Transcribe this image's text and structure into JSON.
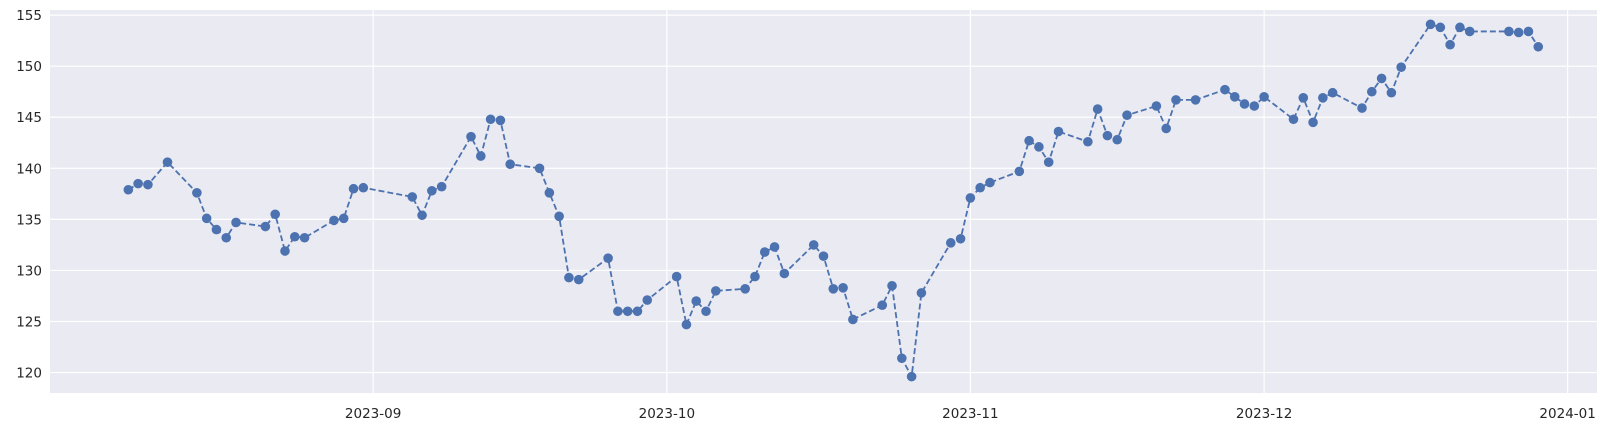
{
  "chart_data": {
    "type": "line",
    "title": "",
    "xlabel": "",
    "ylabel": "",
    "x_is_date": true,
    "xlim": [
      "2023-07-30",
      "2024-01-04"
    ],
    "ylim": [
      118,
      155.5
    ],
    "grid": true,
    "legend": "none",
    "line_style": "dashed",
    "marker": "circle",
    "color": "#4c72b0",
    "background": "#eaeaf2",
    "x_ticks": [
      {
        "date": "2023-09-01",
        "label": "2023-09"
      },
      {
        "date": "2023-10-01",
        "label": "2023-10"
      },
      {
        "date": "2023-11-01",
        "label": "2023-11"
      },
      {
        "date": "2023-12-01",
        "label": "2023-12"
      },
      {
        "date": "2024-01-01",
        "label": "2024-01"
      }
    ],
    "y_ticks": [
      120,
      125,
      130,
      135,
      140,
      145,
      150,
      155
    ],
    "series": [
      {
        "points": [
          [
            "2023-08-07",
            137.9
          ],
          [
            "2023-08-08",
            138.5
          ],
          [
            "2023-08-09",
            138.4
          ],
          [
            "2023-08-11",
            140.6
          ],
          [
            "2023-08-14",
            137.6
          ],
          [
            "2023-08-15",
            135.1
          ],
          [
            "2023-08-16",
            134.0
          ],
          [
            "2023-08-17",
            133.2
          ],
          [
            "2023-08-18",
            134.7
          ],
          [
            "2023-08-21",
            134.3
          ],
          [
            "2023-08-22",
            135.5
          ],
          [
            "2023-08-23",
            131.9
          ],
          [
            "2023-08-24",
            133.3
          ],
          [
            "2023-08-25",
            133.2
          ],
          [
            "2023-08-28",
            134.9
          ],
          [
            "2023-08-29",
            135.1
          ],
          [
            "2023-08-30",
            138.0
          ],
          [
            "2023-08-31",
            138.1
          ],
          [
            "2023-09-05",
            137.2
          ],
          [
            "2023-09-06",
            135.4
          ],
          [
            "2023-09-07",
            137.8
          ],
          [
            "2023-09-08",
            138.2
          ],
          [
            "2023-09-11",
            143.1
          ],
          [
            "2023-09-12",
            141.2
          ],
          [
            "2023-09-13",
            144.8
          ],
          [
            "2023-09-14",
            144.7
          ],
          [
            "2023-09-15",
            140.4
          ],
          [
            "2023-09-18",
            140.0
          ],
          [
            "2023-09-19",
            137.6
          ],
          [
            "2023-09-20",
            135.3
          ],
          [
            "2023-09-21",
            129.3
          ],
          [
            "2023-09-22",
            129.1
          ],
          [
            "2023-09-25",
            131.2
          ],
          [
            "2023-09-26",
            126.0
          ],
          [
            "2023-09-27",
            126.0
          ],
          [
            "2023-09-28",
            126.0
          ],
          [
            "2023-09-29",
            127.1
          ],
          [
            "2023-10-02",
            129.4
          ],
          [
            "2023-10-03",
            124.7
          ],
          [
            "2023-10-04",
            127.0
          ],
          [
            "2023-10-05",
            126.0
          ],
          [
            "2023-10-06",
            128.0
          ],
          [
            "2023-10-09",
            128.2
          ],
          [
            "2023-10-10",
            129.4
          ],
          [
            "2023-10-11",
            131.8
          ],
          [
            "2023-10-12",
            132.3
          ],
          [
            "2023-10-13",
            129.7
          ],
          [
            "2023-10-16",
            132.5
          ],
          [
            "2023-10-17",
            131.4
          ],
          [
            "2023-10-18",
            128.2
          ],
          [
            "2023-10-19",
            128.3
          ],
          [
            "2023-10-20",
            125.2
          ],
          [
            "2023-10-23",
            126.6
          ],
          [
            "2023-10-24",
            128.5
          ],
          [
            "2023-10-25",
            121.4
          ],
          [
            "2023-10-26",
            119.6
          ],
          [
            "2023-10-27",
            127.8
          ],
          [
            "2023-10-30",
            132.7
          ],
          [
            "2023-10-31",
            133.1
          ],
          [
            "2023-11-01",
            137.1
          ],
          [
            "2023-11-02",
            138.1
          ],
          [
            "2023-11-03",
            138.6
          ],
          [
            "2023-11-06",
            139.7
          ],
          [
            "2023-11-07",
            142.7
          ],
          [
            "2023-11-08",
            142.1
          ],
          [
            "2023-11-09",
            140.6
          ],
          [
            "2023-11-10",
            143.6
          ],
          [
            "2023-11-13",
            142.6
          ],
          [
            "2023-11-14",
            145.8
          ],
          [
            "2023-11-15",
            143.2
          ],
          [
            "2023-11-16",
            142.8
          ],
          [
            "2023-11-17",
            145.2
          ],
          [
            "2023-11-20",
            146.1
          ],
          [
            "2023-11-21",
            143.9
          ],
          [
            "2023-11-22",
            146.7
          ],
          [
            "2023-11-24",
            146.7
          ],
          [
            "2023-11-27",
            147.7
          ],
          [
            "2023-11-28",
            147.0
          ],
          [
            "2023-11-29",
            146.3
          ],
          [
            "2023-11-30",
            146.1
          ],
          [
            "2023-12-01",
            147.0
          ],
          [
            "2023-12-04",
            144.8
          ],
          [
            "2023-12-05",
            146.9
          ],
          [
            "2023-12-06",
            144.5
          ],
          [
            "2023-12-07",
            146.9
          ],
          [
            "2023-12-08",
            147.4
          ],
          [
            "2023-12-11",
            145.9
          ],
          [
            "2023-12-12",
            147.5
          ],
          [
            "2023-12-13",
            148.8
          ],
          [
            "2023-12-14",
            147.4
          ],
          [
            "2023-12-15",
            149.9
          ],
          [
            "2023-12-18",
            154.1
          ],
          [
            "2023-12-19",
            153.8
          ],
          [
            "2023-12-20",
            152.1
          ],
          [
            "2023-12-21",
            153.8
          ],
          [
            "2023-12-22",
            153.4
          ],
          [
            "2023-12-26",
            153.4
          ],
          [
            "2023-12-27",
            153.3
          ],
          [
            "2023-12-28",
            153.4
          ],
          [
            "2023-12-29",
            151.9
          ]
        ]
      }
    ]
  }
}
